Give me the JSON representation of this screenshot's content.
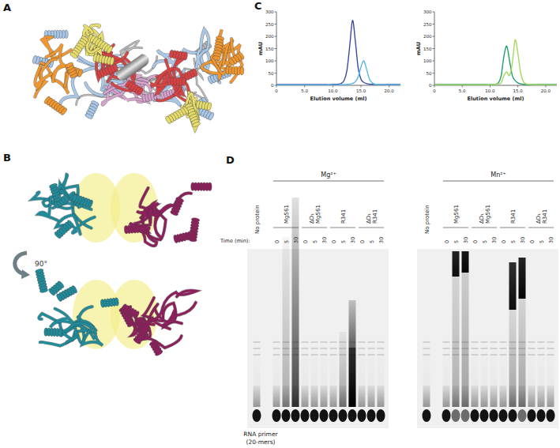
{
  "panels": [
    "A",
    "B",
    "C",
    "D"
  ],
  "panel_b": {
    "rotation": "90°"
  },
  "chart_data": [
    {
      "type": "line",
      "x_label": "Elution volume (ml)",
      "y_label": "mAU",
      "xlim": [
        0,
        22
      ],
      "ylim": [
        0,
        300
      ],
      "xticks": [
        0,
        {
          "value": 5,
          "label": "5.0"
        },
        {
          "value": 10,
          "label": "10.0"
        },
        {
          "value": 15,
          "label": "15.0"
        },
        {
          "value": 20,
          "label": "20.0"
        }
      ],
      "yticks": [
        0,
        50,
        100,
        150,
        200,
        250,
        300
      ],
      "x": [
        0,
        0.5,
        1,
        1.5,
        2,
        2.5,
        3,
        3.5,
        4,
        4.5,
        5,
        5.5,
        6,
        6.5,
        7,
        7.5,
        8,
        8.5,
        9,
        9.5,
        10,
        10.5,
        11,
        11.5,
        12,
        12.5,
        13,
        13.5,
        14,
        14.5,
        15,
        15.5,
        16,
        16.5,
        17,
        17.5,
        18,
        18.5,
        19,
        19.5,
        20,
        20.5,
        21,
        21.5,
        22
      ],
      "series": [
        {
          "color": "#3c4a9e",
          "values": [
            3,
            3,
            3,
            3,
            3,
            3,
            3,
            3,
            3,
            3,
            3,
            3,
            3,
            3,
            3,
            3,
            3,
            3,
            3,
            3,
            4,
            4,
            5,
            8,
            20,
            60,
            160,
            265,
            180,
            70,
            25,
            12,
            7,
            5,
            4,
            4,
            4,
            3,
            3,
            3,
            3,
            3,
            3,
            3,
            3
          ]
        },
        {
          "color": "#55b8e6",
          "values": [
            2,
            2,
            2,
            2,
            2,
            2,
            2,
            2,
            2,
            2,
            2,
            2,
            2,
            2,
            2,
            2,
            2,
            2,
            2,
            2,
            2,
            2,
            2,
            3,
            3,
            4,
            5,
            8,
            15,
            35,
            75,
            100,
            65,
            25,
            10,
            5,
            4,
            3,
            3,
            2,
            2,
            2,
            2,
            2,
            2
          ]
        }
      ]
    },
    {
      "type": "line",
      "x_label": "Elution volume (ml)",
      "y_label": "mAU",
      "xlim": [
        0,
        22
      ],
      "ylim": [
        0,
        300
      ],
      "xticks": [
        0,
        {
          "value": 5,
          "label": "5.0"
        },
        {
          "value": 10,
          "label": "10.0"
        },
        {
          "value": 15,
          "label": "15.0"
        },
        {
          "value": 20,
          "label": "20.0"
        }
      ],
      "yticks": [
        0,
        50,
        100,
        150,
        200,
        250,
        300
      ],
      "x": [
        0,
        0.5,
        1,
        1.5,
        2,
        2.5,
        3,
        3.5,
        4,
        4.5,
        5,
        5.5,
        6,
        6.5,
        7,
        7.5,
        8,
        8.5,
        9,
        9.5,
        10,
        10.5,
        11,
        11.5,
        12,
        12.5,
        13,
        13.5,
        14,
        14.5,
        15,
        15.5,
        16,
        16.5,
        17,
        17.5,
        18,
        18.5,
        19,
        19.5,
        20,
        20.5,
        21,
        21.5,
        22
      ],
      "series": [
        {
          "color": "#1f9e6e",
          "values": [
            3,
            3,
            3,
            3,
            3,
            3,
            3,
            3,
            3,
            3,
            3,
            3,
            3,
            3,
            3,
            3,
            3,
            3,
            3,
            3,
            3,
            4,
            5,
            10,
            40,
            120,
            160,
            100,
            40,
            20,
            10,
            6,
            4,
            3,
            3,
            3,
            3,
            3,
            3,
            3,
            3,
            3,
            3,
            3,
            3
          ]
        },
        {
          "color": "#a6d860",
          "values": [
            2,
            2,
            2,
            2,
            2,
            2,
            2,
            2,
            2,
            2,
            2,
            2,
            2,
            2,
            2,
            2,
            2,
            2,
            2,
            2,
            2,
            3,
            4,
            6,
            10,
            40,
            55,
            40,
            90,
            185,
            130,
            50,
            15,
            6,
            4,
            3,
            3,
            2,
            2,
            2,
            2,
            2,
            2,
            2,
            2
          ]
        }
      ]
    }
  ],
  "gel": {
    "no_protein": "No protein",
    "ions": [
      "Mg²⁺",
      "Mn²⁺"
    ],
    "samples": [
      [
        "Mg561"
      ],
      [
        "ΔD₁",
        "Mg561"
      ],
      [
        "R341"
      ],
      [
        "ΔD₁",
        "R341"
      ]
    ],
    "time_label": "Time (min):",
    "times": [
      0,
      5,
      30
    ],
    "primer_label": [
      "RNA primer",
      "(20-mers)"
    ]
  }
}
